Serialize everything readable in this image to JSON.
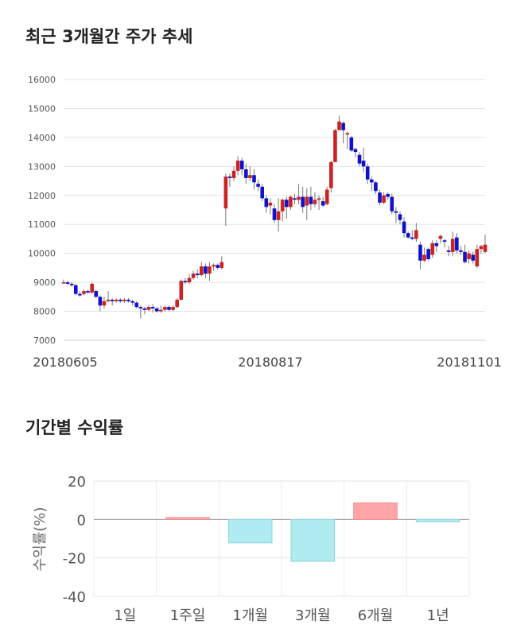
{
  "titles": {
    "price": "최근 3개월간 주가 추세",
    "returns": "기간별 수익률"
  },
  "chart_data": [
    {
      "type": "candlestick",
      "ylim": [
        7000,
        16000
      ],
      "yticks": [
        7000,
        8000,
        9000,
        10000,
        11000,
        12000,
        13000,
        14000,
        15000,
        16000
      ],
      "xtick_labels": [
        "20180605",
        "20180817",
        "20181101"
      ],
      "grid": true,
      "up_color": "#cc2222",
      "down_color": "#1111cc",
      "candles": [
        [
          9000,
          9000,
          9100,
          8950
        ],
        [
          9000,
          8950,
          9050,
          8900
        ],
        [
          8950,
          8900,
          9000,
          8850
        ],
        [
          8900,
          8600,
          8950,
          8550
        ],
        [
          8600,
          8550,
          8700,
          8500
        ],
        [
          8600,
          8700,
          8750,
          8550
        ],
        [
          8700,
          8650,
          8750,
          8600
        ],
        [
          8650,
          8950,
          9000,
          8600
        ],
        [
          8700,
          8500,
          8750,
          8450
        ],
        [
          8500,
          8200,
          8550,
          8000
        ],
        [
          8200,
          8350,
          8500,
          8100
        ],
        [
          8350,
          8400,
          8700,
          8300
        ],
        [
          8400,
          8350,
          8450,
          8200
        ],
        [
          8350,
          8400,
          8450,
          8300
        ],
        [
          8400,
          8350,
          8450,
          8300
        ],
        [
          8350,
          8400,
          8450,
          8300
        ],
        [
          8400,
          8350,
          8450,
          8300
        ],
        [
          8350,
          8300,
          8400,
          8200
        ],
        [
          8300,
          8150,
          8350,
          8100
        ],
        [
          8150,
          8100,
          8200,
          7750
        ],
        [
          8100,
          8050,
          8150,
          7900
        ],
        [
          8050,
          8150,
          8200,
          8000
        ],
        [
          8150,
          8100,
          8250,
          7950
        ],
        [
          8100,
          8000,
          8150,
          7950
        ],
        [
          8000,
          8050,
          8200,
          7950
        ],
        [
          8050,
          8150,
          8200,
          8000
        ],
        [
          8150,
          8050,
          8200,
          8000
        ],
        [
          8050,
          8150,
          8200,
          8000
        ],
        [
          8150,
          8400,
          8450,
          8100
        ],
        [
          8400,
          9050,
          9100,
          8350
        ],
        [
          9050,
          9000,
          9150,
          8950
        ],
        [
          9000,
          9150,
          9300,
          8950
        ],
        [
          9150,
          9300,
          9400,
          9100
        ],
        [
          9300,
          9250,
          9450,
          9150
        ],
        [
          9250,
          9550,
          9700,
          9200
        ],
        [
          9550,
          9300,
          9650,
          9150
        ],
        [
          9300,
          9550,
          9700,
          9050
        ],
        [
          9550,
          9600,
          9650,
          9400
        ],
        [
          9600,
          9500,
          9650,
          9450
        ],
        [
          9500,
          9700,
          9900,
          9450
        ],
        [
          11550,
          12650,
          12750,
          10950
        ],
        [
          12650,
          12600,
          12750,
          12300
        ],
        [
          12600,
          12850,
          13000,
          12500
        ],
        [
          12850,
          13200,
          13350,
          12700
        ],
        [
          13200,
          12900,
          13300,
          12700
        ],
        [
          12900,
          12600,
          13100,
          12400
        ],
        [
          12600,
          12700,
          13000,
          12500
        ],
        [
          12700,
          12450,
          12900,
          12200
        ],
        [
          12400,
          12300,
          12550,
          12150
        ],
        [
          12300,
          11900,
          12400,
          11800
        ],
        [
          11900,
          11600,
          12000,
          11400
        ],
        [
          11650,
          11750,
          11900,
          11350
        ],
        [
          11550,
          11150,
          11700,
          11050
        ],
        [
          11150,
          11450,
          11900,
          10750
        ],
        [
          11450,
          11850,
          11900,
          11100
        ],
        [
          11850,
          11600,
          11950,
          11200
        ],
        [
          11600,
          11950,
          12000,
          11500
        ],
        [
          11900,
          11850,
          12050,
          11700
        ],
        [
          11850,
          11950,
          12400,
          11700
        ],
        [
          11950,
          11600,
          12300,
          11400
        ],
        [
          11650,
          11950,
          12250,
          11150
        ],
        [
          11950,
          11700,
          12300,
          11500
        ],
        [
          11700,
          11850,
          12100,
          11600
        ],
        [
          11850,
          11900,
          12000,
          11500
        ],
        [
          11800,
          11650,
          11950,
          11600
        ],
        [
          11700,
          12200,
          12300,
          11650
        ],
        [
          12250,
          13150,
          13200,
          12100
        ],
        [
          13150,
          14250,
          14300,
          13150
        ],
        [
          14250,
          14550,
          14750,
          14300
        ],
        [
          14500,
          14250,
          14550,
          13800
        ],
        [
          14100,
          14150,
          14200,
          13600
        ],
        [
          14000,
          13550,
          14050,
          13500
        ],
        [
          13600,
          13500,
          13650,
          13300
        ],
        [
          13400,
          13100,
          13500,
          13000
        ],
        [
          13200,
          13000,
          13650,
          12800
        ],
        [
          13000,
          12550,
          13100,
          12400
        ],
        [
          12550,
          12450,
          12650,
          12150
        ],
        [
          12450,
          12150,
          12500,
          12050
        ],
        [
          12100,
          11750,
          12200,
          11650
        ],
        [
          11750,
          12000,
          12100,
          11700
        ],
        [
          12050,
          11950,
          12100,
          11850
        ],
        [
          11950,
          11450,
          12050,
          11350
        ],
        [
          11450,
          11400,
          11600,
          11050
        ],
        [
          11350,
          11150,
          11450,
          11000
        ],
        [
          11100,
          10700,
          11250,
          10550
        ],
        [
          10700,
          10550,
          10750,
          10500
        ],
        [
          10550,
          10500,
          10800,
          10450
        ],
        [
          10500,
          10800,
          11050,
          10400
        ],
        [
          10300,
          9750,
          10400,
          9450
        ],
        [
          9750,
          9950,
          10200,
          9700
        ],
        [
          10150,
          9800,
          10200,
          9750
        ],
        [
          9950,
          10350,
          10450,
          9850
        ],
        [
          10350,
          10250,
          10450,
          10050
        ],
        [
          10500,
          10600,
          10650,
          10350
        ],
        [
          10450,
          10400,
          10500,
          10200
        ],
        [
          10100,
          10050,
          10250,
          9900
        ],
        [
          10050,
          10500,
          10750,
          9900
        ],
        [
          10550,
          10100,
          10700,
          10000
        ],
        [
          10100,
          10050,
          10250,
          9950
        ],
        [
          10050,
          9700,
          10300,
          9650
        ],
        [
          9800,
          10000,
          10100,
          9650
        ],
        [
          9950,
          9750,
          10050,
          9650
        ],
        [
          9550,
          10150,
          10300,
          9500
        ],
        [
          10150,
          10250,
          10300,
          10000
        ],
        [
          10050,
          10300,
          10650,
          10000
        ]
      ]
    },
    {
      "type": "bar",
      "categories": [
        "1일",
        "1주일",
        "1개월",
        "3개월",
        "6개월",
        "1년"
      ],
      "values": [
        0,
        1.0,
        -12.2,
        -21.8,
        8.6,
        -1.2
      ],
      "ylim": [
        -40,
        20
      ],
      "yticks": [
        -40,
        -20,
        0,
        20
      ],
      "ylabel": "수익률(%)",
      "grid": true,
      "positive_color": "#ffa5a8",
      "negative_color": "#b0ebf2"
    }
  ]
}
